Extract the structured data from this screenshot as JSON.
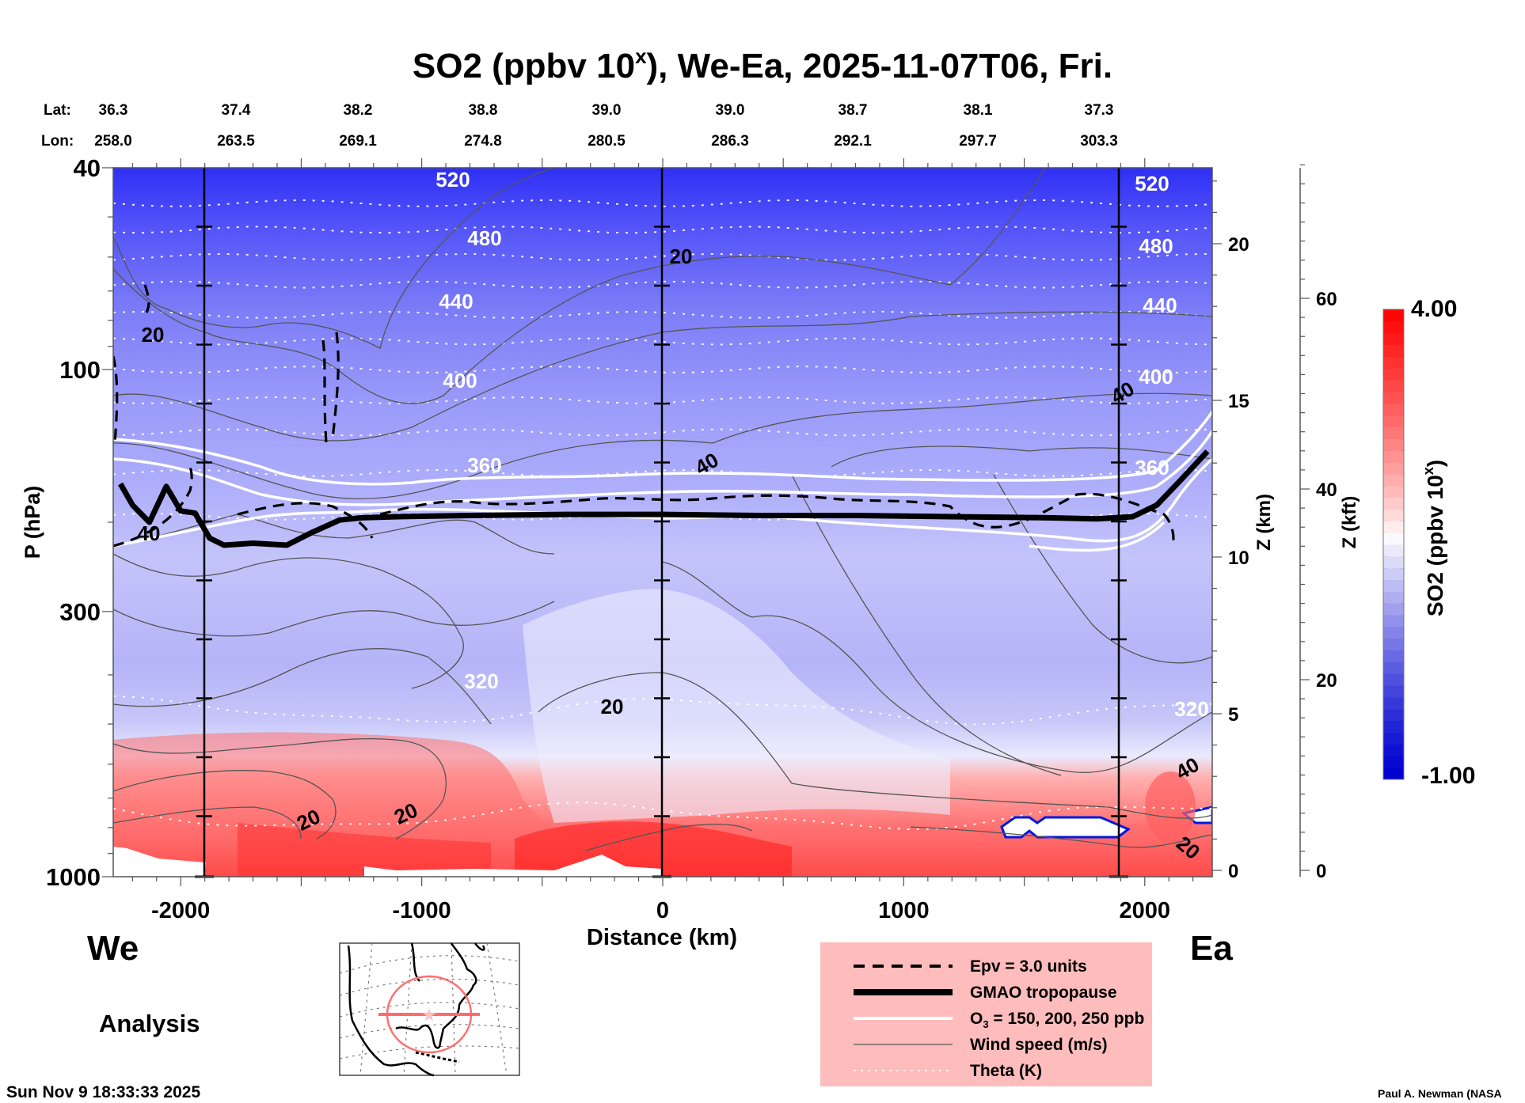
{
  "chart_data": {
    "type": "heatmap",
    "title": "SO2 (ppbv 10",
    "title_superscript": "x",
    "title_suffix": "), We-Ea, 2025-11-07T06, Fri.",
    "xlabel": "Distance (km)",
    "ylabel": "P (hPa)",
    "xlim": [
      -2280,
      2280
    ],
    "ylim_hpa": [
      1000,
      40
    ],
    "x_ticks": [
      -2000,
      -1000,
      0,
      1000,
      2000
    ],
    "x_tick_labels": [
      "-2000",
      "-1000",
      "0",
      "1000",
      "2000"
    ],
    "y_ticks": [
      40,
      100,
      300,
      1000
    ],
    "y_tick_labels": [
      "40",
      "100",
      "300",
      "1000"
    ],
    "z_km_axis": {
      "label": "Z (km)",
      "ticks": [
        0,
        5,
        10,
        15,
        20
      ],
      "tick_labels": [
        "0",
        "5",
        "10",
        "15",
        "20"
      ]
    },
    "z_kft_axis": {
      "label": "Z (kft)",
      "ticks": [
        0,
        20,
        40,
        60
      ],
      "tick_labels": [
        "0",
        "20",
        "40",
        "60"
      ]
    },
    "lat_row": {
      "label": "Lat:",
      "values": [
        "36.3",
        "37.4",
        "38.2",
        "38.8",
        "39.0",
        "39.0",
        "38.7",
        "38.1",
        "37.3"
      ]
    },
    "lon_row": {
      "label": "Lon:",
      "values": [
        "258.0",
        "263.5",
        "269.1",
        "274.8",
        "280.5",
        "286.3",
        "292.1",
        "297.7",
        "303.3"
      ]
    },
    "latlon_positions_km": [
      -2000,
      -1430,
      -860,
      -290,
      280,
      850,
      1420,
      1990,
      2560
    ],
    "vertical_markers_km": [
      -1890,
      0,
      1890
    ],
    "colorbar": {
      "label": "SO2 (ppbv 10",
      "label_superscript": "x",
      "label_suffix": ")",
      "min": -1.0,
      "max": 4.0,
      "min_label": "-1.00",
      "max_label": "4.00",
      "levels": 40,
      "low_color": "#0000d0",
      "mid_color": "#ffffff",
      "high_color": "#ff0000"
    },
    "theta_contours": [
      {
        "value": 520,
        "label": "520",
        "p": 48
      },
      {
        "value": 480,
        "label": "480",
        "p": 60
      },
      {
        "value": 440,
        "label": "440",
        "p": 78
      },
      {
        "value": 400,
        "label": "400",
        "p": 100
      },
      {
        "value": 360,
        "label": "360",
        "p": 160
      },
      {
        "value": 320,
        "label": "320",
        "p": 470
      }
    ],
    "wind_labels": [
      {
        "label": "20",
        "x": -2120,
        "p": 88
      },
      {
        "label": "20",
        "x": 60,
        "p": 62
      },
      {
        "label": "40",
        "x": -2100,
        "p": 210
      },
      {
        "label": "40",
        "x": 180,
        "p": 155
      },
      {
        "label": "40",
        "x": 1830,
        "p": 110
      },
      {
        "label": "20",
        "x": -200,
        "p": 520
      },
      {
        "label": "20",
        "x": -1420,
        "p": 790
      },
      {
        "label": "20",
        "x": -1000,
        "p": 770
      },
      {
        "label": "40",
        "x": 2090,
        "p": 655
      },
      {
        "label": "20",
        "x": 2110,
        "p": 920
      }
    ],
    "tropopause_hpa": [
      [
        -2250,
        168
      ],
      [
        -2200,
        185
      ],
      [
        -2130,
        200
      ],
      [
        -2060,
        170
      ],
      [
        -2000,
        190
      ],
      [
        -1940,
        192
      ],
      [
        -1880,
        215
      ],
      [
        -1820,
        222
      ],
      [
        -1700,
        220
      ],
      [
        -1560,
        222
      ],
      [
        -1460,
        210
      ],
      [
        -1340,
        198
      ],
      [
        -1250,
        196
      ],
      [
        -1100,
        195
      ],
      [
        -800,
        194
      ],
      [
        -400,
        193
      ],
      [
        0,
        193
      ],
      [
        400,
        194
      ],
      [
        800,
        194
      ],
      [
        1200,
        195
      ],
      [
        1600,
        196
      ],
      [
        1800,
        197
      ],
      [
        1950,
        195
      ],
      [
        2050,
        185
      ],
      [
        2150,
        165
      ],
      [
        2260,
        145
      ]
    ]
  },
  "labels": {
    "west": "We",
    "east": "Ea",
    "analysis": "Analysis",
    "timestamp": "Sun Nov  9 18:33:33 2025",
    "author": "Paul A. Newman (NASA"
  },
  "legend": {
    "background": "#ffbcbc",
    "items": [
      {
        "label": "Epv = 3.0 units",
        "style": "dashed-black"
      },
      {
        "label": "GMAO tropopause",
        "style": "thick-black"
      },
      {
        "label": "O3 = 150, 200, 250 ppb",
        "style": "white"
      },
      {
        "label": "Wind speed (m/s)",
        "style": "thin-gray"
      },
      {
        "label": "Theta (K)",
        "style": "dotted-white"
      }
    ]
  },
  "inset_map": {
    "description": "North America locator map",
    "track_color": "#ff6a6a"
  }
}
